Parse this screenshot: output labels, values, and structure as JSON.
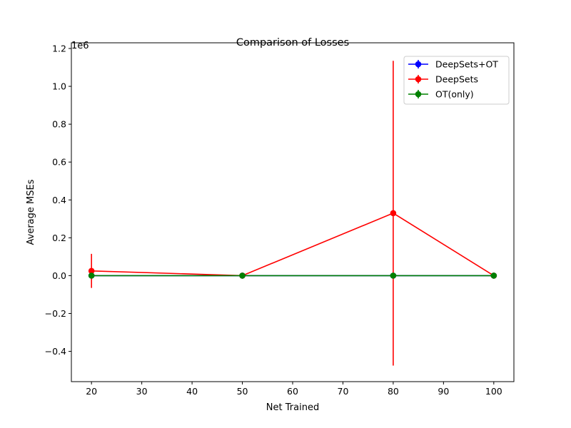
{
  "chart_data": {
    "type": "line",
    "title": "Comparison of Losses",
    "xlabel": "Net Trained",
    "ylabel": "Average MSEs",
    "y_offset_label": "1e6",
    "x": [
      20,
      50,
      80,
      100
    ],
    "xlim": [
      16,
      104
    ],
    "ylim": [
      -0.56,
      1.23
    ],
    "x_ticks": [
      20,
      30,
      40,
      50,
      60,
      70,
      80,
      90,
      100
    ],
    "x_tick_labels": [
      "20",
      "30",
      "40",
      "50",
      "60",
      "70",
      "80",
      "90",
      "100"
    ],
    "y_ticks": [
      -0.4,
      -0.2,
      0.0,
      0.2,
      0.4,
      0.6,
      0.8,
      1.0,
      1.2
    ],
    "y_tick_labels": [
      "−0.4",
      "−0.2",
      "0.0",
      "0.2",
      "0.4",
      "0.6",
      "0.8",
      "1.0",
      "1.2"
    ],
    "grid": false,
    "legend_position": "top-right",
    "series": [
      {
        "name": "DeepSets+OT",
        "color": "#0000ff",
        "values": [
          0.0,
          0.0,
          0.0,
          0.0
        ],
        "errors": [
          0.0,
          0.0,
          0.0,
          0.0
        ]
      },
      {
        "name": "DeepSets",
        "color": "#ff0000",
        "values": [
          0.025,
          0.0,
          0.33,
          0.0
        ],
        "errors": [
          0.09,
          0.0,
          0.805,
          0.0
        ]
      },
      {
        "name": "OT(only)",
        "color": "#008000",
        "values": [
          0.0,
          0.0,
          0.0,
          0.0
        ],
        "errors": [
          0.0,
          0.0,
          0.0,
          0.0
        ]
      }
    ]
  }
}
